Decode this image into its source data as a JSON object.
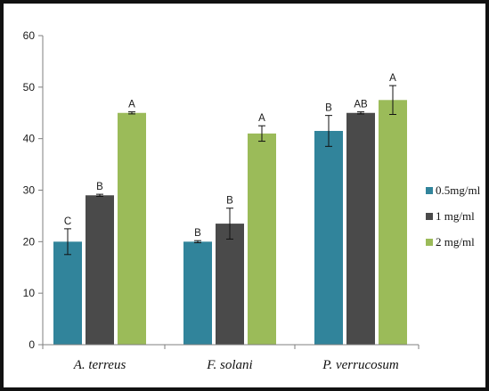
{
  "chart_data": {
    "type": "bar",
    "title": "",
    "xlabel": "",
    "ylabel": "",
    "ylim": [
      0,
      60
    ],
    "yticks": [
      0,
      10,
      20,
      30,
      40,
      50,
      60
    ],
    "grid": false,
    "legend_position": "right",
    "categories": [
      "A. terreus",
      "F. solani",
      "P. verrucosum"
    ],
    "series": [
      {
        "name": "0.5mg/ml",
        "color": "#31849b",
        "values": [
          20,
          20,
          41.5
        ],
        "errors": [
          2.5,
          0.2,
          3
        ],
        "labels": [
          "C",
          "B",
          "B"
        ]
      },
      {
        "name": "1 mg/ml",
        "color": "#4a4a4a",
        "values": [
          29,
          23.5,
          45
        ],
        "errors": [
          0.2,
          3,
          0.2
        ],
        "labels": [
          "B",
          "B",
          "AB"
        ]
      },
      {
        "name": "2 mg/ml",
        "color": "#9bbb59",
        "values": [
          45,
          41,
          47.5
        ],
        "errors": [
          0.2,
          1.5,
          2.8
        ],
        "labels": [
          "A",
          "A",
          "A"
        ]
      }
    ]
  }
}
